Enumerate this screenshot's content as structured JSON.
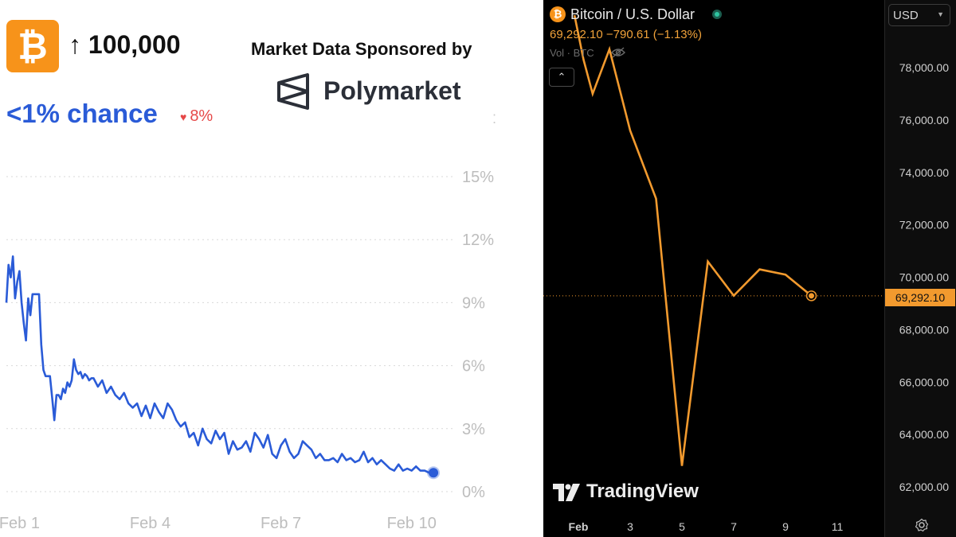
{
  "polymarket": {
    "icon": "bitcoin-icon",
    "market_title": "↑ 100,000",
    "sponsor_label": "Market Data Sponsored by",
    "sponsor_name": "Polymarket",
    "chance_label": "<1% chance",
    "change_label": "8%",
    "colors": {
      "line": "#2a5bd7",
      "tile": "#f7931a",
      "change": "#e64848",
      "grid": "#d9d9d9",
      "ticks": "#bdbdbd"
    }
  },
  "tradingview": {
    "title": "Bitcoin / U.S. Dollar",
    "quote": "69,292.10  −790.61 (−1.13%)",
    "volume_label": "Vol · BTC",
    "currency": "USD",
    "brand": "TradingView",
    "price_tag": "69,292.10",
    "colors": {
      "line": "#f29a2e",
      "background": "#000000",
      "axis_text": "#d0d0d0"
    }
  },
  "chart_data": [
    {
      "type": "line",
      "title": "",
      "xlabel": "",
      "ylabel": "",
      "xlim": [
        0,
        10
      ],
      "ylim": [
        0,
        16
      ],
      "grid": true,
      "x_ticks": [
        {
          "x": 0.3,
          "label": "Feb 1"
        },
        {
          "x": 3.3,
          "label": "Feb 4"
        },
        {
          "x": 6.3,
          "label": "Feb 7"
        },
        {
          "x": 9.3,
          "label": "Feb 10"
        }
      ],
      "y_ticks": [
        {
          "value": 15,
          "label": "15%"
        },
        {
          "value": 12,
          "label": "12%"
        },
        {
          "value": 9,
          "label": "9%"
        },
        {
          "value": 6,
          "label": "6%"
        },
        {
          "value": 3,
          "label": "3%"
        },
        {
          "value": 0,
          "label": "0%"
        }
      ],
      "series": [
        {
          "x": [
            0.0,
            0.05,
            0.1,
            0.15,
            0.2,
            0.25,
            0.3,
            0.35,
            0.4,
            0.45,
            0.5,
            0.55,
            0.6,
            0.65,
            0.7,
            0.75,
            0.8,
            0.85,
            0.9,
            0.95,
            1.0,
            1.05,
            1.1,
            1.15,
            1.2,
            1.25,
            1.3,
            1.35,
            1.4,
            1.45,
            1.5,
            1.55,
            1.6,
            1.65,
            1.7,
            1.75,
            1.8,
            1.85,
            1.9,
            1.95,
            2.0,
            2.1,
            2.2,
            2.3,
            2.4,
            2.5,
            2.6,
            2.7,
            2.8,
            2.9,
            3.0,
            3.1,
            3.2,
            3.3,
            3.4,
            3.5,
            3.6,
            3.7,
            3.8,
            3.9,
            4.0,
            4.1,
            4.2,
            4.3,
            4.4,
            4.5,
            4.6,
            4.7,
            4.8,
            4.9,
            5.0,
            5.1,
            5.2,
            5.3,
            5.4,
            5.5,
            5.6,
            5.7,
            5.8,
            5.9,
            6.0,
            6.1,
            6.2,
            6.3,
            6.4,
            6.5,
            6.6,
            6.7,
            6.8,
            6.9,
            7.0,
            7.1,
            7.2,
            7.3,
            7.4,
            7.5,
            7.6,
            7.7,
            7.8,
            7.9,
            8.0,
            8.1,
            8.2,
            8.3,
            8.4,
            8.5,
            8.6,
            8.7,
            8.8,
            8.9,
            9.0,
            9.1,
            9.2,
            9.3,
            9.4,
            9.5,
            9.6,
            9.7,
            9.8
          ],
          "values": [
            9.0,
            10.8,
            10.2,
            11.2,
            9.2,
            10.0,
            10.5,
            9.0,
            8.0,
            7.2,
            9.2,
            8.4,
            9.4,
            9.4,
            9.4,
            9.4,
            7.0,
            5.8,
            5.5,
            5.5,
            5.5,
            4.5,
            3.4,
            4.6,
            4.6,
            4.4,
            4.9,
            4.7,
            5.2,
            5.0,
            5.3,
            6.3,
            5.8,
            5.6,
            5.7,
            5.4,
            5.6,
            5.5,
            5.3,
            5.4,
            5.4,
            5.0,
            5.3,
            4.7,
            5.0,
            4.6,
            4.4,
            4.7,
            4.2,
            4.0,
            4.2,
            3.6,
            4.1,
            3.5,
            4.2,
            3.8,
            3.5,
            4.2,
            3.9,
            3.4,
            3.1,
            3.3,
            2.6,
            2.8,
            2.2,
            3.0,
            2.5,
            2.3,
            2.9,
            2.5,
            2.8,
            1.8,
            2.4,
            2.0,
            2.1,
            2.4,
            1.9,
            2.8,
            2.5,
            2.1,
            2.7,
            1.8,
            1.6,
            2.2,
            2.5,
            1.9,
            1.6,
            1.8,
            2.4,
            2.2,
            2.0,
            1.6,
            1.8,
            1.5,
            1.5,
            1.6,
            1.4,
            1.8,
            1.5,
            1.6,
            1.4,
            1.5,
            1.9,
            1.4,
            1.6,
            1.3,
            1.5,
            1.3,
            1.1,
            1.0,
            1.3,
            1.0,
            1.1,
            1.0,
            1.2,
            1.0,
            1.0,
            0.9,
            0.9
          ]
        }
      ]
    },
    {
      "type": "line",
      "title": "",
      "xlabel": "",
      "ylabel": "",
      "xlim": [
        1,
        11.5
      ],
      "ylim": [
        61000,
        80000
      ],
      "grid": false,
      "x_ticks": [
        {
          "x": 1,
          "label": "Feb"
        },
        {
          "x": 3,
          "label": "3"
        },
        {
          "x": 5,
          "label": "5"
        },
        {
          "x": 7,
          "label": "7"
        },
        {
          "x": 9,
          "label": "9"
        },
        {
          "x": 11,
          "label": "11"
        }
      ],
      "y_ticks": [
        {
          "value": 78000,
          "label": "78,000.00"
        },
        {
          "value": 76000,
          "label": "76,000.00"
        },
        {
          "value": 74000,
          "label": "74,000.00"
        },
        {
          "value": 72000,
          "label": "72,000.00"
        },
        {
          "value": 70000,
          "label": "70,000.00"
        },
        {
          "value": 68000,
          "label": "68,000.00"
        },
        {
          "value": 66000,
          "label": "66,000.00"
        },
        {
          "value": 64000,
          "label": "64,000.00"
        },
        {
          "value": 62000,
          "label": "62,000.00"
        }
      ],
      "last_price": 69292.1,
      "series": [
        {
          "x": [
            0.85,
            1.2,
            1.55,
            2.2,
            3.0,
            4.0,
            5.0,
            6.0,
            7.0,
            8.0,
            9.0,
            10.0
          ],
          "values": [
            80000,
            78300,
            77000,
            78700,
            75600,
            73000,
            62800,
            70600,
            69300,
            70300,
            70100,
            69292.1
          ]
        }
      ]
    }
  ]
}
